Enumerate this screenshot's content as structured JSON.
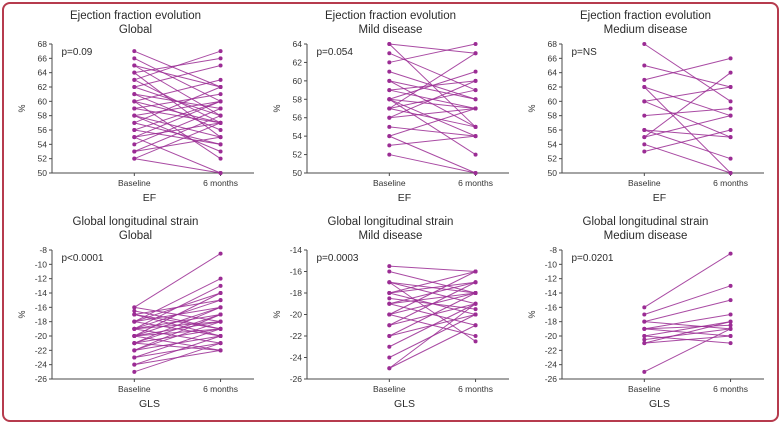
{
  "figure": {
    "line_color": "#9b2c94",
    "border_color": "#b63b4d",
    "axis_color": "#4a4a4a",
    "text_color": "#333333",
    "background": "#ffffff"
  },
  "chart_data": [
    {
      "type": "line",
      "title": "Ejection fraction evolution",
      "subtitle": "Global",
      "p_label": "p=0.09",
      "ylabel": "%",
      "xlabel": "EF",
      "categories": [
        "Baseline",
        "6 months"
      ],
      "ylim": [
        50,
        68
      ],
      "ytick_step": 2,
      "legend": "none",
      "pairs": [
        [
          55,
          60
        ],
        [
          60,
          57
        ],
        [
          62,
          58
        ],
        [
          65,
          62
        ],
        [
          64,
          66
        ],
        [
          58,
          55
        ],
        [
          57,
          62
        ],
        [
          53,
          58
        ],
        [
          52,
          50
        ],
        [
          66,
          60
        ],
        [
          63,
          57
        ],
        [
          61,
          59
        ],
        [
          59,
          61
        ],
        [
          56,
          54
        ],
        [
          55,
          57
        ],
        [
          54,
          59
        ],
        [
          60,
          63
        ],
        [
          62,
          65
        ],
        [
          58,
          60
        ],
        [
          57,
          54
        ],
        [
          65,
          58
        ],
        [
          64,
          55
        ],
        [
          61,
          56
        ],
        [
          59,
          57
        ],
        [
          56,
          60
        ],
        [
          53,
          55
        ],
        [
          52,
          57
        ],
        [
          67,
          62
        ],
        [
          60,
          52
        ],
        [
          63,
          67
        ],
        [
          58,
          53
        ],
        [
          55,
          50
        ]
      ]
    },
    {
      "type": "line",
      "title": "Ejection fraction evolution",
      "subtitle": "Mild disease",
      "p_label": "p=0.054",
      "ylabel": "%",
      "xlabel": "EF",
      "categories": [
        "Baseline",
        "6 months"
      ],
      "ylim": [
        50,
        64
      ],
      "ytick_step": 2,
      "legend": "none",
      "pairs": [
        [
          58,
          57
        ],
        [
          62,
          64
        ],
        [
          60,
          58
        ],
        [
          57,
          55
        ],
        [
          56,
          60
        ],
        [
          59,
          57
        ],
        [
          63,
          59
        ],
        [
          58,
          61
        ],
        [
          54,
          57
        ],
        [
          52,
          50
        ],
        [
          64,
          63
        ],
        [
          57,
          59
        ],
        [
          55,
          54
        ],
        [
          60,
          55
        ],
        [
          58,
          54
        ],
        [
          61,
          58
        ],
        [
          56,
          57
        ],
        [
          54,
          50
        ],
        [
          59,
          60
        ],
        [
          64,
          55
        ],
        [
          57,
          63
        ],
        [
          53,
          54
        ],
        [
          58,
          52
        ]
      ]
    },
    {
      "type": "line",
      "title": "Ejection fraction evolution",
      "subtitle": "Medium disease",
      "p_label": "p=NS",
      "ylabel": "%",
      "xlabel": "EF",
      "categories": [
        "Baseline",
        "6 months"
      ],
      "ylim": [
        50,
        68
      ],
      "ytick_step": 2,
      "legend": "none",
      "pairs": [
        [
          68,
          60
        ],
        [
          65,
          62
        ],
        [
          63,
          66
        ],
        [
          62,
          58
        ],
        [
          60,
          55
        ],
        [
          58,
          59
        ],
        [
          56,
          52
        ],
        [
          55,
          58
        ],
        [
          54,
          50
        ],
        [
          53,
          56
        ],
        [
          62,
          50
        ],
        [
          55,
          64
        ],
        [
          56,
          55
        ],
        [
          60,
          62
        ]
      ]
    },
    {
      "type": "line",
      "title": "Global longitudinal strain",
      "subtitle": "Global",
      "p_label": "p<0.0001",
      "ylabel": "%",
      "xlabel": "GLS",
      "categories": [
        "Baseline",
        "6 months"
      ],
      "ylim": [
        -26,
        -8
      ],
      "ytick_step": 2,
      "legend": "none",
      "pairs": [
        [
          -16,
          -8.5
        ],
        [
          -18,
          -14
        ],
        [
          -19,
          -15
        ],
        [
          -20,
          -16
        ],
        [
          -21,
          -17
        ],
        [
          -22,
          -18
        ],
        [
          -17,
          -19
        ],
        [
          -18,
          -20
        ],
        [
          -19,
          -17
        ],
        [
          -20,
          -18
        ],
        [
          -21,
          -19
        ],
        [
          -22,
          -20
        ],
        [
          -23,
          -19
        ],
        [
          -24,
          -20
        ],
        [
          -25,
          -21
        ],
        [
          -18,
          -16
        ],
        [
          -19,
          -21
        ],
        [
          -20,
          -22
        ],
        [
          -17,
          -15
        ],
        [
          -16,
          -18
        ],
        [
          -21,
          -16
        ],
        [
          -22,
          -17
        ],
        [
          -20,
          -14
        ],
        [
          -19,
          -13
        ],
        [
          -18,
          -12
        ],
        [
          -23,
          -21
        ],
        [
          -24,
          -22
        ],
        [
          -17,
          -20
        ],
        [
          -16.5,
          -19
        ],
        [
          -21,
          -22
        ],
        [
          -20,
          -19
        ],
        [
          -19,
          -18
        ]
      ]
    },
    {
      "type": "line",
      "title": "Global longitudinal strain",
      "subtitle": "Mild disease",
      "p_label": "p=0.0003",
      "ylabel": "%",
      "xlabel": "GLS",
      "categories": [
        "Baseline",
        "6 months"
      ],
      "ylim": [
        -26,
        -14
      ],
      "ytick_step": 2,
      "legend": "none",
      "pairs": [
        [
          -15.5,
          -16
        ],
        [
          -17,
          -18
        ],
        [
          -18,
          -16
        ],
        [
          -19,
          -17
        ],
        [
          -20,
          -18
        ],
        [
          -21,
          -19
        ],
        [
          -22,
          -18
        ],
        [
          -23,
          -19
        ],
        [
          -24,
          -20
        ],
        [
          -25,
          -21
        ],
        [
          -18,
          -20
        ],
        [
          -19,
          -21
        ],
        [
          -20,
          -22
        ],
        [
          -17,
          -19
        ],
        [
          -16,
          -18
        ],
        [
          -21,
          -17
        ],
        [
          -22,
          -20
        ],
        [
          -18,
          -17
        ],
        [
          -19,
          -18
        ],
        [
          -20,
          -16
        ],
        [
          -25,
          -19
        ],
        [
          -17,
          -22.5
        ],
        [
          -18.5,
          -19.5
        ]
      ]
    },
    {
      "type": "line",
      "title": "Global longitudinal strain",
      "subtitle": "Medium disease",
      "p_label": "p=0.0201",
      "ylabel": "%",
      "xlabel": "GLS",
      "categories": [
        "Baseline",
        "6 months"
      ],
      "ylim": [
        -26,
        -8
      ],
      "ytick_step": 2,
      "legend": "none",
      "pairs": [
        [
          -16,
          -8.5
        ],
        [
          -17,
          -13
        ],
        [
          -18,
          -15
        ],
        [
          -19,
          -17
        ],
        [
          -20,
          -18
        ],
        [
          -20.5,
          -19
        ],
        [
          -21,
          -18
        ],
        [
          -19,
          -20
        ],
        [
          -18,
          -19
        ],
        [
          -21,
          -20
        ],
        [
          -25,
          -19
        ],
        [
          -20,
          -21
        ],
        [
          -19,
          -18.5
        ]
      ]
    }
  ]
}
